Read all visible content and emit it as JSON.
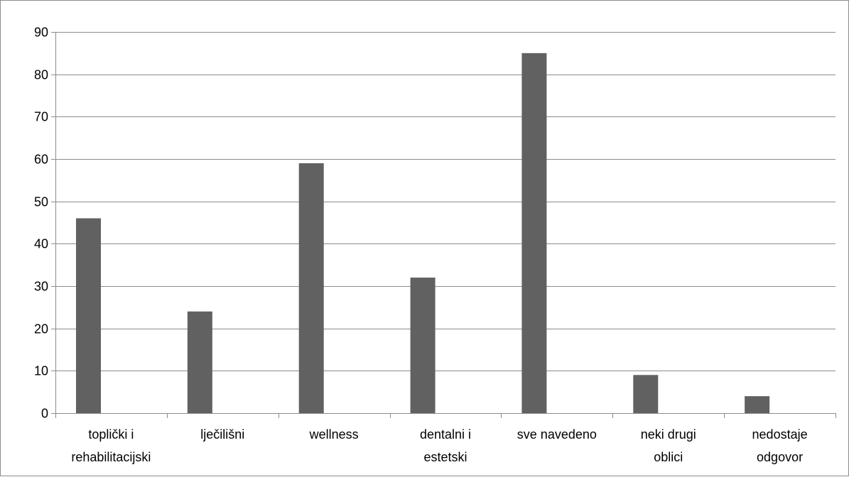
{
  "chart_data": {
    "type": "bar",
    "categories": [
      [
        "toplički i",
        "rehabilitacijski"
      ],
      [
        "lječilišni"
      ],
      [
        "wellness"
      ],
      [
        "dentalni i",
        "estetski"
      ],
      [
        "sve navedeno"
      ],
      [
        "neki drugi",
        "oblici"
      ],
      [
        "nedostaje",
        "odgovor"
      ]
    ],
    "values": [
      46,
      24,
      59,
      32,
      85,
      9,
      4
    ],
    "ylim": [
      0,
      90
    ],
    "yticks": [
      0,
      10,
      20,
      30,
      40,
      50,
      60,
      70,
      80,
      90
    ],
    "grid": true,
    "bar_color": "#616161",
    "grid_color": "#8c8c8c"
  }
}
